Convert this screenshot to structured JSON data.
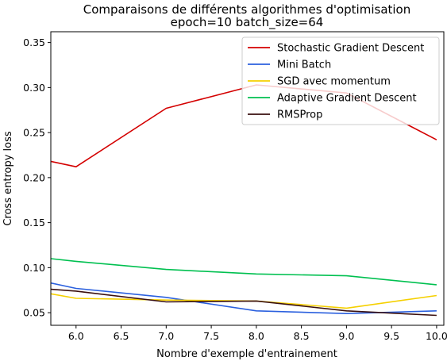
{
  "chart_data": {
    "type": "line",
    "title": "Comparaisons de différents algorithmes d'optimisation",
    "subtitle": "epoch=10 batch_size=64",
    "xlabel": "Nombre d'exemple d'entrainement",
    "ylabel": "Cross entropy loss",
    "xlim": [
      5.72,
      10.08
    ],
    "ylim": [
      0.036,
      0.362
    ],
    "xticks": [
      "6.0",
      "6.5",
      "7.0",
      "7.5",
      "8.0",
      "8.5",
      "9.0",
      "9.5",
      "10.0"
    ],
    "yticks": [
      "0.05",
      "0.10",
      "0.15",
      "0.20",
      "0.25",
      "0.30",
      "0.35"
    ],
    "grid": false,
    "legend_position": "top-right",
    "series": [
      {
        "name": "Stochastic Gradient Descent",
        "color": "#d40000",
        "x": [
          5.72,
          6.0,
          7.0,
          8.0,
          9.0,
          10.0
        ],
        "y": [
          0.218,
          0.212,
          0.277,
          0.303,
          0.294,
          0.242
        ]
      },
      {
        "name": "Mini Batch",
        "color": "#2b60de",
        "x": [
          5.72,
          6.0,
          7.0,
          8.0,
          9.0,
          10.0
        ],
        "y": [
          0.083,
          0.077,
          0.067,
          0.052,
          0.049,
          0.052
        ]
      },
      {
        "name": "SGD avec momentum",
        "color": "#f5d000",
        "x": [
          5.72,
          6.0,
          7.0,
          8.0,
          9.0,
          10.0
        ],
        "y": [
          0.071,
          0.066,
          0.064,
          0.063,
          0.055,
          0.069
        ]
      },
      {
        "name": "Adaptive Gradient Descent",
        "color": "#00c050",
        "x": [
          5.72,
          6.0,
          7.0,
          8.0,
          9.0,
          10.0
        ],
        "y": [
          0.11,
          0.107,
          0.098,
          0.093,
          0.091,
          0.081
        ]
      },
      {
        "name": "RMSProp",
        "color": "#3a1010",
        "x": [
          5.72,
          6.0,
          7.0,
          8.0,
          9.0,
          10.0
        ],
        "y": [
          0.076,
          0.074,
          0.062,
          0.063,
          0.052,
          0.047
        ]
      }
    ]
  }
}
